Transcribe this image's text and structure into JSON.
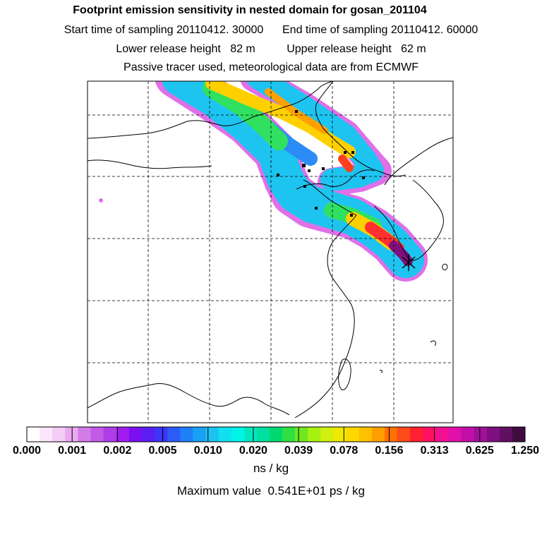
{
  "header": {
    "title": "Footprint emission sensitivity in nested domain for gosan_201104",
    "start_label": "Start time of sampling 20110412. 30000",
    "end_label": "End time of sampling 20110412. 60000",
    "lower_label": "Lower release height   82 m",
    "upper_label": "Upper release height   62 m",
    "note": "Passive tracer used, meteorological data are from ECMWF"
  },
  "chart_data": {
    "type": "heatmap",
    "title": "Footprint emission sensitivity in nested domain for gosan_201104",
    "colorbar": {
      "ticks": [
        "0.000",
        "0.001",
        "0.002",
        "0.005",
        "0.010",
        "0.020",
        "0.039",
        "0.078",
        "0.156",
        "0.313",
        "0.625",
        "1.250"
      ],
      "units": "ns / kg",
      "colors": [
        "#ffffff",
        "#fbe6fb",
        "#f4ccf4",
        "#e9aaf0",
        "#d27ce8",
        "#c35ae6",
        "#b13cea",
        "#a01df0",
        "#7a10f0",
        "#5a1ef5",
        "#3c35f8",
        "#2b5cf8",
        "#1e7ff8",
        "#18a0f5",
        "#1cc2f2",
        "#10e0f0",
        "#00f5e8",
        "#00e8c0",
        "#00e0a0",
        "#00d870",
        "#30e040",
        "#70e820",
        "#a8f010",
        "#d0f010",
        "#f0e800",
        "#ffd800",
        "#ffc000",
        "#ffa000",
        "#ff7000",
        "#ff4a1a",
        "#ff2030",
        "#ff1060",
        "#f01090",
        "#e010a8",
        "#c010a8",
        "#a01098",
        "#801080",
        "#601060",
        "#400c40"
      ]
    },
    "max_value": "Maximum value  0.541E+01 ps / kg",
    "gridlines": true,
    "receptor": "Gosan"
  },
  "colors": {
    "frame": "#000000",
    "grid": "#000000"
  }
}
